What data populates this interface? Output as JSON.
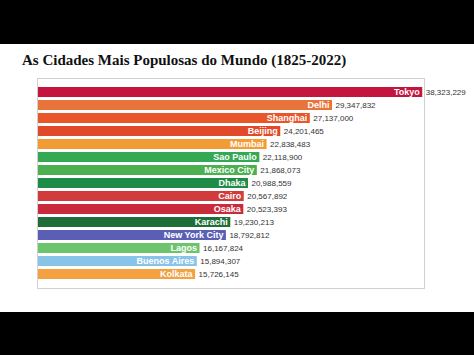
{
  "chart_data": {
    "type": "bar",
    "title": "As Cidades Mais Populosas do Mundo (1825-2022)",
    "orientation": "horizontal",
    "categories": [
      "Tokyo",
      "Delhi",
      "Shanghai",
      "Beijing",
      "Mumbai",
      "Sao Paulo",
      "Mexico City",
      "Dhaka",
      "Cairo",
      "Osaka",
      "Karachi",
      "New York City",
      "Lagos",
      "Buenos Aires",
      "Kolkata"
    ],
    "values": [
      38323229,
      29347832,
      27137000,
      24201465,
      22838483,
      22118900,
      21868073,
      20988559,
      20567892,
      20523393,
      19230213,
      18792812,
      16167824,
      15894307,
      15726145
    ],
    "value_labels": [
      "38,323,229",
      "29,347,832",
      "27,137,000",
      "24,201,465",
      "22,838,483",
      "22,118,900",
      "21,868,073",
      "20,988,559",
      "20,567,892",
      "20,523,393",
      "19,230,213",
      "18,792,812",
      "16,167,824",
      "15,894,307",
      "15,726,145"
    ],
    "colors": [
      "#c4153f",
      "#e8743b",
      "#e8562a",
      "#e04a2a",
      "#f39c34",
      "#34a853",
      "#4caf50",
      "#1e8c46",
      "#d23b3b",
      "#c92a3c",
      "#1f6e3a",
      "#5a5fb5",
      "#6cc46c",
      "#88c4e8",
      "#f4a142"
    ],
    "xlim": [
      0,
      38500000
    ],
    "xticks": [],
    "data_labels": true,
    "tick_labels": false
  }
}
